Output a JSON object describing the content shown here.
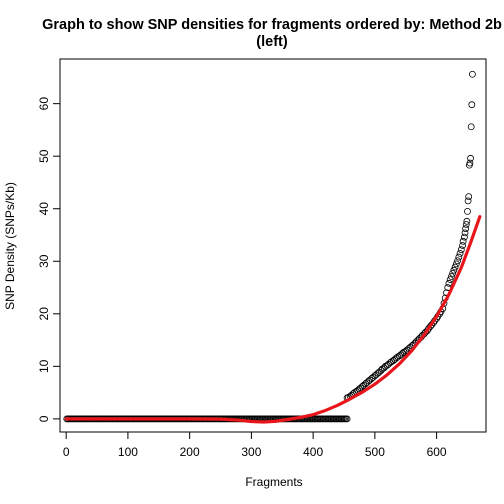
{
  "chart_data": {
    "type": "scatter",
    "title_line1": "Graph to show SNP densities for fragments ordered by: Method 2b",
    "title_line2": "(left)",
    "xlabel": "Fragments",
    "ylabel": "SNP Density (SNPs/Kb)",
    "xlim": [
      -10,
      680
    ],
    "ylim": [
      -2.5,
      68.5
    ],
    "xticks": [
      0,
      100,
      200,
      300,
      400,
      500,
      600
    ],
    "yticks": [
      0,
      10,
      20,
      30,
      40,
      50,
      60
    ],
    "grid": false,
    "series": [
      {
        "kind": "points",
        "marker": "open-circle",
        "color": "#000000",
        "zero_run": {
          "x_start": 1,
          "x_end": 455,
          "step": 2,
          "y": 0
        },
        "points": [
          [
            455,
            4.0
          ],
          [
            457,
            4.1
          ],
          [
            460,
            4.3
          ],
          [
            462,
            4.5
          ],
          [
            465,
            4.8
          ],
          [
            467,
            5.0
          ],
          [
            470,
            5.2
          ],
          [
            472,
            5.4
          ],
          [
            475,
            5.7
          ],
          [
            477,
            5.9
          ],
          [
            480,
            6.2
          ],
          [
            482,
            6.4
          ],
          [
            485,
            6.7
          ],
          [
            487,
            6.9
          ],
          [
            490,
            7.2
          ],
          [
            492,
            7.4
          ],
          [
            495,
            7.7
          ],
          [
            497,
            7.9
          ],
          [
            500,
            8.2
          ],
          [
            502,
            8.4
          ],
          [
            505,
            8.7
          ],
          [
            507,
            8.9
          ],
          [
            510,
            9.2
          ],
          [
            512,
            9.5
          ],
          [
            515,
            9.7
          ],
          [
            517,
            10.0
          ],
          [
            520,
            10.2
          ],
          [
            522,
            10.4
          ],
          [
            525,
            10.7
          ],
          [
            527,
            10.9
          ],
          [
            530,
            11.1
          ],
          [
            532,
            11.3
          ],
          [
            535,
            11.6
          ],
          [
            537,
            11.8
          ],
          [
            540,
            12.0
          ],
          [
            542,
            12.2
          ],
          [
            545,
            12.5
          ],
          [
            547,
            12.7
          ],
          [
            550,
            12.9
          ],
          [
            552,
            13.1
          ],
          [
            555,
            13.4
          ],
          [
            557,
            13.6
          ],
          [
            560,
            13.9
          ],
          [
            562,
            14.1
          ],
          [
            565,
            14.4
          ],
          [
            567,
            14.7
          ],
          [
            570,
            15.0
          ],
          [
            572,
            15.3
          ],
          [
            575,
            15.6
          ],
          [
            577,
            15.9
          ],
          [
            580,
            16.2
          ],
          [
            582,
            16.5
          ],
          [
            585,
            16.8
          ],
          [
            587,
            17.2
          ],
          [
            590,
            17.6
          ],
          [
            592,
            17.9
          ],
          [
            595,
            18.3
          ],
          [
            597,
            18.7
          ],
          [
            600,
            19.1
          ],
          [
            602,
            19.5
          ],
          [
            605,
            20.0
          ],
          [
            607,
            20.4
          ],
          [
            610,
            21.0
          ],
          [
            612,
            22.0
          ],
          [
            614,
            23.0
          ],
          [
            616,
            24.0
          ],
          [
            618,
            25.0
          ],
          [
            620,
            25.8
          ],
          [
            622,
            26.5
          ],
          [
            624,
            27.1
          ],
          [
            626,
            27.7
          ],
          [
            628,
            28.3
          ],
          [
            630,
            28.9
          ],
          [
            632,
            29.5
          ],
          [
            634,
            30.1
          ],
          [
            636,
            30.8
          ],
          [
            638,
            31.5
          ],
          [
            640,
            32.2
          ],
          [
            642,
            33.0
          ],
          [
            643,
            33.8
          ],
          [
            645,
            34.6
          ],
          [
            646,
            35.4
          ],
          [
            647,
            36.2
          ],
          [
            648,
            37.0
          ],
          [
            649,
            37.6
          ],
          [
            650,
            39.5
          ],
          [
            651,
            41.5
          ],
          [
            652,
            42.3
          ],
          [
            653,
            48.3
          ],
          [
            654,
            48.7
          ],
          [
            655,
            49.6
          ],
          [
            656,
            55.6
          ],
          [
            657,
            59.8
          ],
          [
            658,
            65.6
          ]
        ]
      },
      {
        "kind": "line",
        "color": "#e8151b",
        "points": [
          [
            0,
            0.0
          ],
          [
            50,
            0.0
          ],
          [
            100,
            0.0
          ],
          [
            150,
            0.0
          ],
          [
            200,
            0.0
          ],
          [
            250,
            -0.05
          ],
          [
            280,
            -0.25
          ],
          [
            300,
            -0.5
          ],
          [
            320,
            -0.6
          ],
          [
            340,
            -0.45
          ],
          [
            360,
            -0.1
          ],
          [
            380,
            0.3
          ],
          [
            400,
            0.8
          ],
          [
            420,
            1.6
          ],
          [
            440,
            2.6
          ],
          [
            460,
            3.8
          ],
          [
            480,
            5.1
          ],
          [
            500,
            6.6
          ],
          [
            520,
            8.4
          ],
          [
            540,
            10.5
          ],
          [
            560,
            13.0
          ],
          [
            580,
            16.0
          ],
          [
            600,
            19.5
          ],
          [
            620,
            23.7
          ],
          [
            640,
            28.8
          ],
          [
            655,
            33.5
          ],
          [
            670,
            38.5
          ]
        ]
      }
    ]
  }
}
